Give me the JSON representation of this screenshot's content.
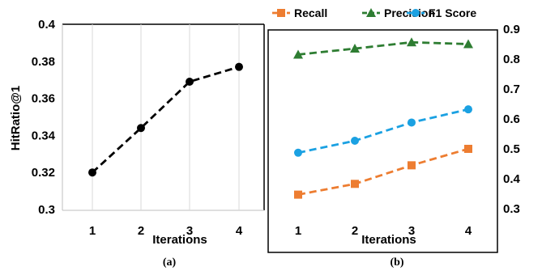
{
  "chart_data": [
    {
      "type": "line",
      "panel": "(a)",
      "categories": [
        "1",
        "2",
        "3",
        "4"
      ],
      "series": [
        {
          "values": [
            0.32,
            0.344,
            0.369,
            0.377
          ],
          "color": "#000000",
          "marker": "circle",
          "line_style": "dashed"
        }
      ],
      "xlabel": "Iterations",
      "ylabel": "HitRatio@1",
      "ylim": [
        0.3,
        0.4
      ],
      "yticks": [
        "0.3",
        "0.32",
        "0.34",
        "0.36",
        "0.38",
        "0.4"
      ],
      "grid": "vertical",
      "caption": "(a)"
    },
    {
      "type": "line",
      "panel": "(b)",
      "categories": [
        "1",
        "2",
        "3",
        "4"
      ],
      "series": [
        {
          "name": "Recall",
          "values": [
            0.347,
            0.383,
            0.445,
            0.5
          ],
          "color": "#ED7D31",
          "marker": "square",
          "line_style": "dashed"
        },
        {
          "name": "Precision",
          "values": [
            0.815,
            0.835,
            0.856,
            0.85
          ],
          "color": "#2E7D32",
          "marker": "triangle",
          "line_style": "dashed"
        },
        {
          "name": "F1 Score",
          "values": [
            0.487,
            0.527,
            0.588,
            0.632
          ],
          "color": "#1BA1E2",
          "marker": "circle",
          "line_style": "dashed"
        }
      ],
      "xlabel": "Iterations",
      "ylabel": "",
      "ylim": [
        0.3,
        0.9
      ],
      "yticks": [
        "0.3",
        "0.4",
        "0.5",
        "0.6",
        "0.7",
        "0.8",
        "0.9"
      ],
      "y_axis_side": "right",
      "legend_position": "top",
      "caption": "(b)"
    }
  ]
}
